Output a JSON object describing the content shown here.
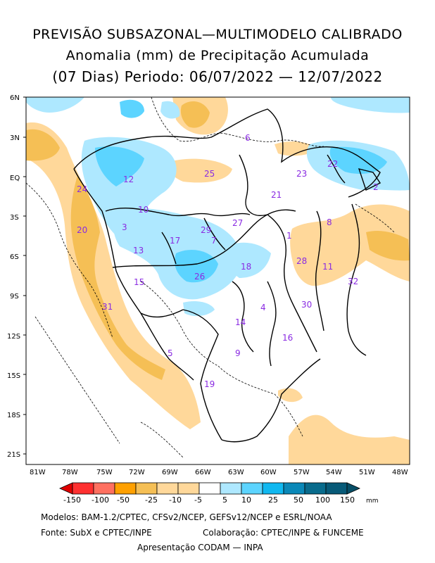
{
  "title": {
    "line1": "PREVISÃO SUBSAZONAL—MULTIMODELO CALIBRADO",
    "line2": "Anomalia (mm) de Precipitação Acumulada",
    "line3": "(07 Dias) Periodo: 06/07/2022 — 12/07/2022"
  },
  "lat_labels": [
    "6N",
    "3N",
    "EQ",
    "3S",
    "6S",
    "9S",
    "12S",
    "15S",
    "18S",
    "21S"
  ],
  "lon_labels": [
    "81W",
    "78W",
    "75W",
    "72W",
    "69W",
    "66W",
    "63W",
    "60W",
    "57W",
    "54W",
    "51W",
    "48W"
  ],
  "basins": [
    {
      "id": "1"
    },
    {
      "id": "2"
    },
    {
      "id": "3"
    },
    {
      "id": "4"
    },
    {
      "id": "5"
    },
    {
      "id": "6"
    },
    {
      "id": "7"
    },
    {
      "id": "8"
    },
    {
      "id": "9"
    },
    {
      "id": "10"
    },
    {
      "id": "11"
    },
    {
      "id": "12"
    },
    {
      "id": "13"
    },
    {
      "id": "14"
    },
    {
      "id": "15"
    },
    {
      "id": "16"
    },
    {
      "id": "17"
    },
    {
      "id": "18"
    },
    {
      "id": "19"
    },
    {
      "id": "20"
    },
    {
      "id": "21"
    },
    {
      "id": "22"
    },
    {
      "id": "23"
    },
    {
      "id": "24"
    },
    {
      "id": "25"
    },
    {
      "id": "26"
    },
    {
      "id": "27"
    },
    {
      "id": "28"
    },
    {
      "id": "29"
    },
    {
      "id": "30"
    },
    {
      "id": "31"
    },
    {
      "id": "32"
    }
  ],
  "colorbar": {
    "labels": [
      "-150",
      "-100",
      "-50",
      "-25",
      "-10",
      "-5",
      "5",
      "10",
      "25",
      "50",
      "100",
      "150"
    ],
    "unit": "mm",
    "colors": [
      "#e00000",
      "#ff3030",
      "#ff7060",
      "#ffa000",
      "#f5bf55",
      "#ffd89a",
      "#ffffff",
      "#aee8ff",
      "#5cd4ff",
      "#10b8f0",
      "#0a88b8",
      "#086b8c",
      "#064e66"
    ]
  },
  "credits": {
    "models": "Modelos: BAM-1.2/CPTEC, CFSv2/NCEP, GEFSv12/NCEP e ESRL/NOAA",
    "source": "Fonte: SubX e CPTEC/INPE",
    "collab": "Colaboração: CPTEC/INPE & FUNCEME",
    "presentation": "Apresentação CODAM — INPA"
  },
  "colors": {
    "positive_anomaly": "#5cd4ff",
    "negative_anomaly": "#f5bf55",
    "basin_label": "#8a2be2"
  }
}
